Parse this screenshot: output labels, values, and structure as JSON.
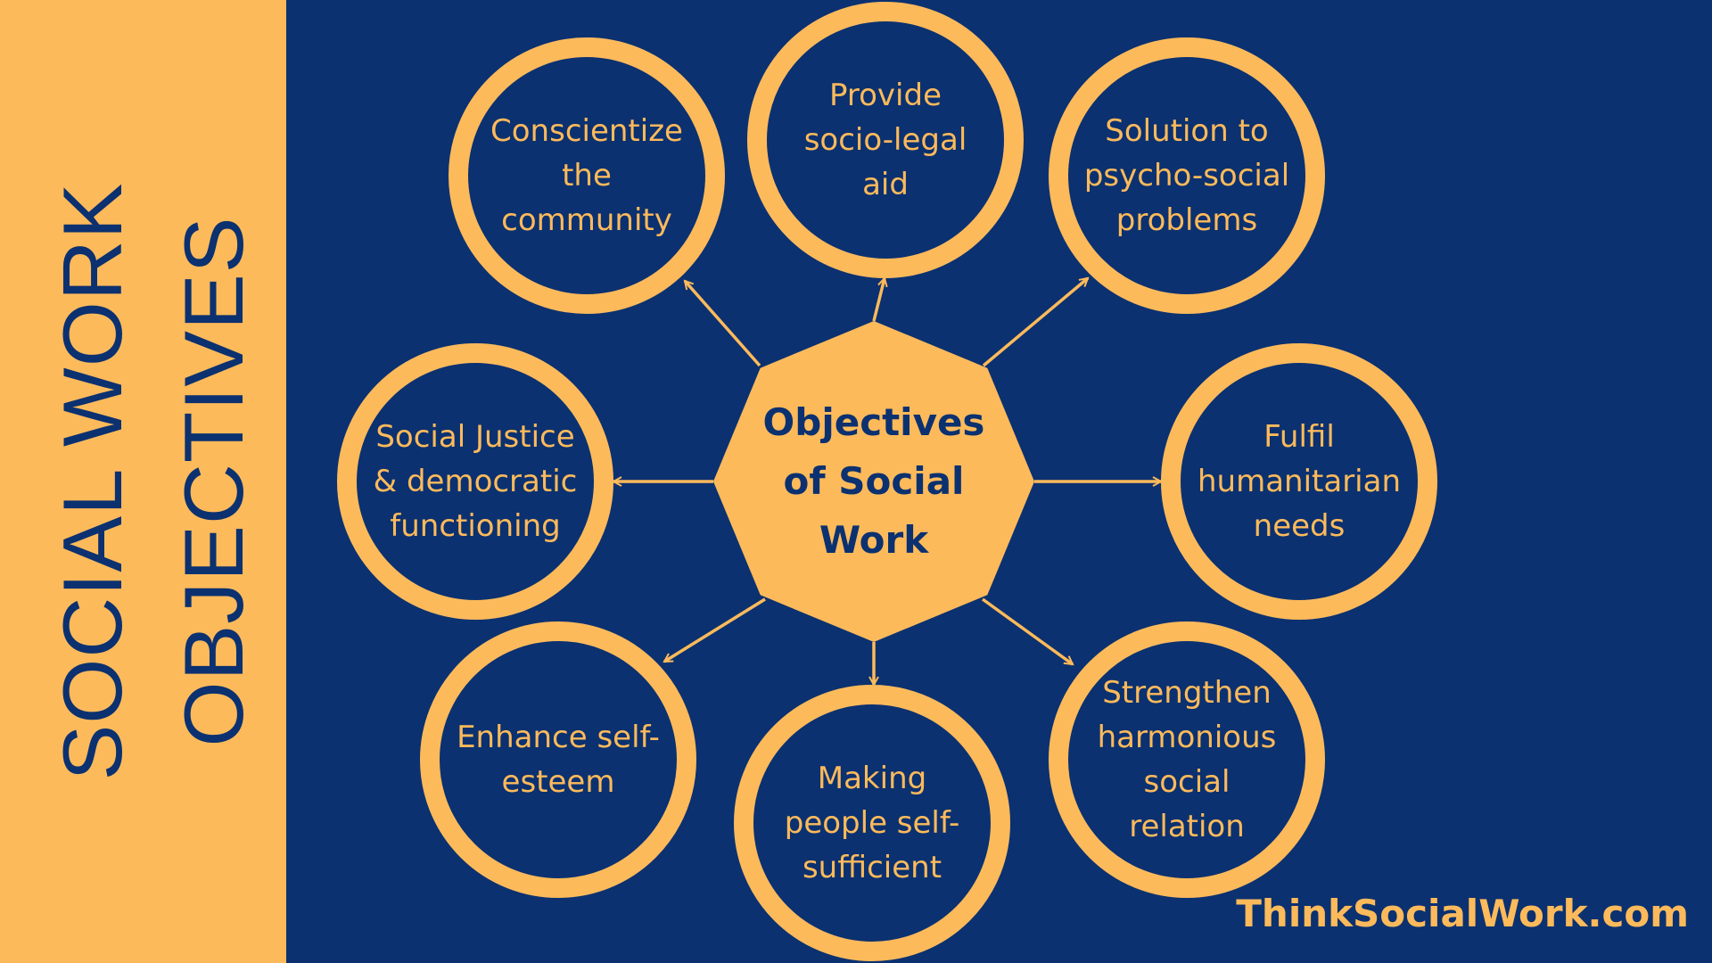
{
  "side_title": {
    "line1": "SOCIAL WORK",
    "line2": "OBJECTIVES"
  },
  "center": {
    "label": "Objectives\nof Social\nWork"
  },
  "nodes": [
    {
      "label": "Conscientize\nthe\ncommunity"
    },
    {
      "label": "Provide\nsocio-legal\naid"
    },
    {
      "label": "Solution to\npsycho-social\nproblems"
    },
    {
      "label": "Social Justice\n& democratic\nfunctioning"
    },
    {
      "label": "Fulfil\nhumanitarian\nneeds"
    },
    {
      "label": "Enhance self-\nesteem"
    },
    {
      "label": "Making\npeople self-\nsufficient"
    },
    {
      "label": "Strengthen\nharmonious\nsocial\nrelation"
    }
  ],
  "footer": {
    "site": "ThinkSocialWork.com"
  },
  "colors": {
    "background": "#0b3170",
    "accent": "#fdba5b"
  }
}
